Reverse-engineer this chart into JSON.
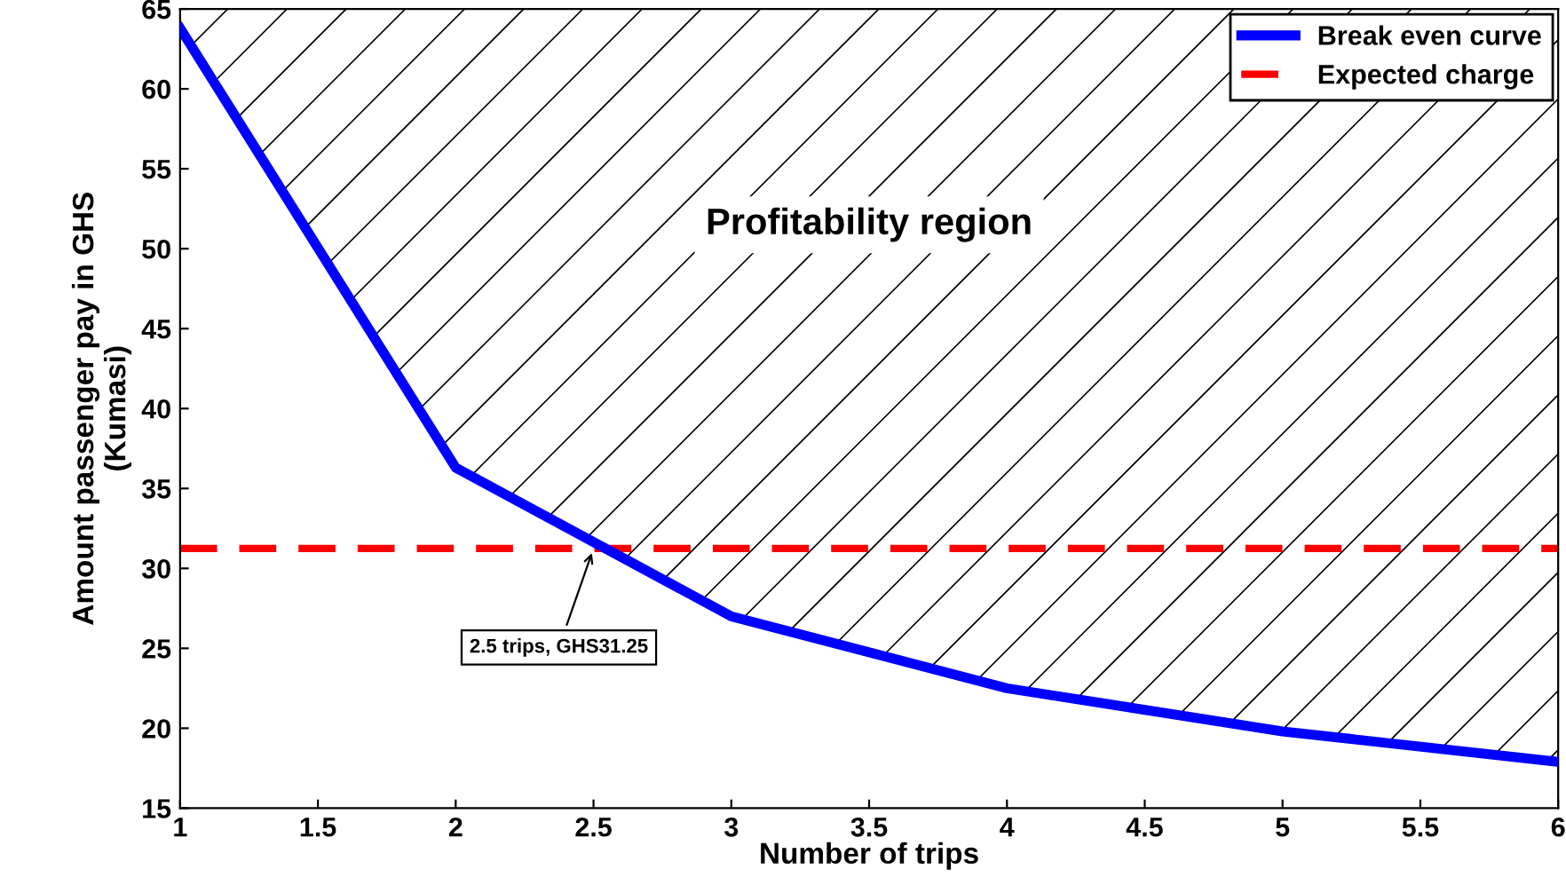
{
  "chart_data": {
    "type": "line",
    "xlabel": "Number of trips",
    "ylabel": "Amount passenger pay in GHS\n(Kumasi)",
    "x": [
      1,
      2,
      3,
      4,
      5,
      6
    ],
    "series": [
      {
        "name": "Break even curve",
        "color": "#0000ff",
        "values": [
          63.8,
          36.3,
          27.0,
          22.5,
          19.8,
          17.9
        ],
        "lower": [
          63.8,
          36.3,
          27.0,
          22.5,
          19.8,
          17.9
        ],
        "upper": [
          65,
          65,
          65,
          65,
          65,
          65
        ]
      }
    ],
    "ref_lines": [
      {
        "axis": "y",
        "value": 31.25,
        "label": "Expected charge",
        "color": "#ff0000",
        "line_style": "dashed"
      }
    ],
    "annotations": [
      {
        "text": "2.5 trips, GHS31.25",
        "x": 2.5,
        "y": 31.25
      },
      "Profitability region"
    ],
    "xlim": [
      1,
      6
    ],
    "ylim": [
      15,
      65
    ],
    "xticks": [
      1,
      1.5,
      2,
      2.5,
      3,
      3.5,
      4,
      4.5,
      5,
      5.5,
      6
    ],
    "yticks": [
      15,
      20,
      25,
      30,
      35,
      40,
      45,
      50,
      55,
      60,
      65
    ],
    "legend": "top right",
    "grid": false
  }
}
